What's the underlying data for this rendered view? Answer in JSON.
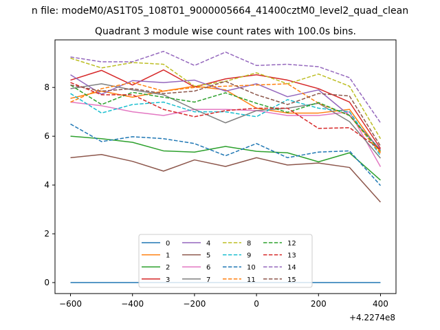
{
  "figure": {
    "suptitle": "n file: modeM0/AS1T05_108T01_9000005664_41400cztM0_level2_quad_clean"
  },
  "chart_data": {
    "type": "line",
    "title": "Quadrant 3 module wise count rates with 100.0s bins.",
    "xlabel": "",
    "ylabel": "",
    "x_offset_label": "+4.2274e8",
    "x": [
      -600,
      -500,
      -400,
      -300,
      -200,
      -100,
      0,
      100,
      200,
      300,
      400
    ],
    "xlim": [
      -650,
      450
    ],
    "ylim": [
      -0.45,
      9.95
    ],
    "xticks": [
      -600,
      -400,
      -200,
      0,
      200,
      400
    ],
    "xtick_labels": [
      "−600",
      "−400",
      "−200",
      "0",
      "200",
      "400"
    ],
    "yticks": [
      0,
      2,
      4,
      6,
      8
    ],
    "ytick_labels": [
      "0",
      "2",
      "4",
      "6",
      "8"
    ],
    "grid": false,
    "legend": {
      "placement": "lower center",
      "ncol": 4
    },
    "series": [
      {
        "name": "0",
        "color": "#1f77b4",
        "dash": "solid",
        "values": [
          0,
          0,
          0,
          0,
          0,
          0,
          0,
          0,
          0,
          0,
          0
        ]
      },
      {
        "name": "1",
        "color": "#ff7f0e",
        "dash": "solid",
        "values": [
          7.55,
          7.85,
          7.6,
          7.85,
          8.05,
          7.9,
          7.15,
          6.95,
          6.95,
          7.1,
          5.35
        ]
      },
      {
        "name": "2",
        "color": "#2ca02c",
        "dash": "solid",
        "values": [
          6.0,
          5.9,
          5.75,
          5.4,
          5.35,
          5.58,
          5.38,
          5.32,
          4.95,
          5.32,
          4.2
        ]
      },
      {
        "name": "3",
        "color": "#d62728",
        "dash": "solid",
        "values": [
          8.3,
          8.7,
          8.1,
          8.72,
          8.02,
          8.35,
          8.52,
          8.3,
          7.95,
          7.4,
          5.5
        ]
      },
      {
        "name": "4",
        "color": "#9467bd",
        "dash": "solid",
        "values": [
          8.52,
          7.72,
          8.28,
          8.2,
          8.3,
          7.85,
          8.15,
          7.62,
          7.9,
          6.85,
          5.45
        ]
      },
      {
        "name": "5",
        "color": "#8c564b",
        "dash": "solid",
        "values": [
          5.12,
          5.25,
          4.97,
          4.57,
          5.03,
          4.76,
          5.12,
          4.82,
          4.9,
          4.72,
          3.3
        ]
      },
      {
        "name": "6",
        "color": "#e377c2",
        "dash": "solid",
        "values": [
          7.4,
          7.25,
          7.0,
          6.85,
          7.1,
          7.1,
          7.05,
          6.85,
          6.85,
          7.0,
          4.75
        ]
      },
      {
        "name": "7",
        "color": "#7f7f7f",
        "dash": "solid",
        "values": [
          7.95,
          8.15,
          7.9,
          7.7,
          7.1,
          6.55,
          7.05,
          7.15,
          7.35,
          6.6,
          5.1
        ]
      },
      {
        "name": "8",
        "color": "#bcbd22",
        "dash": "dashed",
        "values": [
          9.2,
          8.8,
          9.02,
          8.95,
          8.05,
          8.25,
          8.6,
          8.15,
          8.55,
          8.05,
          5.9
        ]
      },
      {
        "name": "9",
        "color": "#17becf",
        "dash": "dashed",
        "values": [
          7.75,
          6.95,
          7.3,
          7.4,
          7.0,
          7.0,
          6.8,
          7.5,
          7.15,
          7.0,
          5.2
        ]
      },
      {
        "name": "10",
        "color": "#1f77b4",
        "dash": "dashed",
        "values": [
          6.5,
          5.78,
          5.98,
          5.9,
          5.7,
          5.2,
          5.7,
          5.12,
          5.35,
          5.4,
          3.98
        ]
      },
      {
        "name": "11",
        "color": "#ff7f0e",
        "dash": "dashed",
        "values": [
          7.4,
          7.95,
          8.2,
          7.85,
          8.0,
          8.05,
          8.1,
          8.15,
          7.35,
          6.85,
          5.3
        ]
      },
      {
        "name": "12",
        "color": "#2ca02c",
        "dash": "dashed",
        "values": [
          8.1,
          7.3,
          7.8,
          7.6,
          7.4,
          7.78,
          7.35,
          6.98,
          7.38,
          6.85,
          5.4
        ]
      },
      {
        "name": "13",
        "color": "#d62728",
        "dash": "dashed",
        "values": [
          8.2,
          7.7,
          7.7,
          7.1,
          6.8,
          7.05,
          7.15,
          7.15,
          6.32,
          6.35,
          5.45
        ]
      },
      {
        "name": "14",
        "color": "#9467bd",
        "dash": "dashed",
        "values": [
          9.25,
          9.05,
          9.05,
          9.48,
          8.9,
          9.45,
          8.9,
          8.95,
          8.85,
          8.4,
          6.55
        ]
      },
      {
        "name": "15",
        "color": "#8c564b",
        "dash": "dashed",
        "values": [
          8.1,
          7.85,
          7.95,
          7.75,
          7.85,
          8.25,
          7.7,
          7.3,
          7.75,
          7.65,
          5.6
        ]
      }
    ]
  }
}
